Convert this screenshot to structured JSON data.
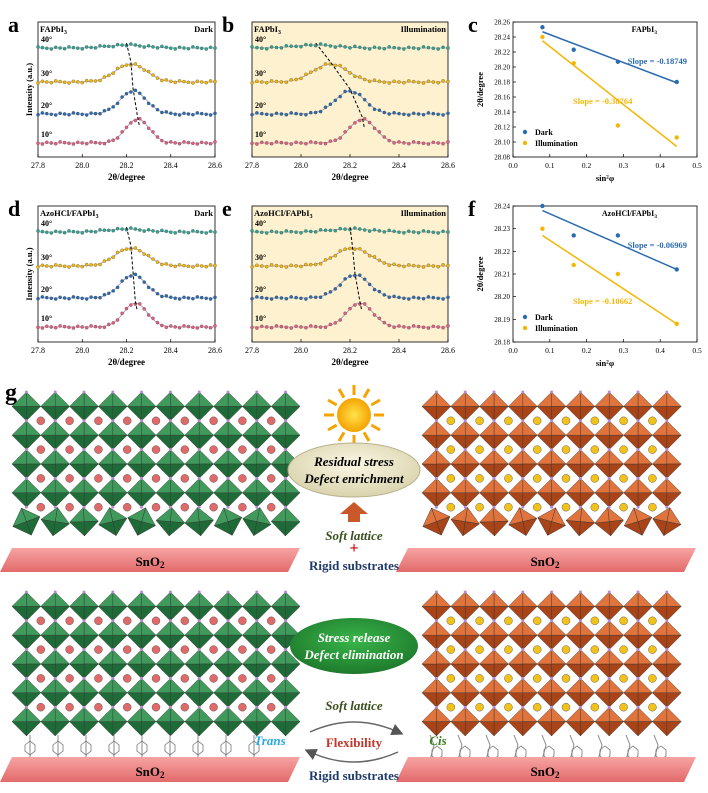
{
  "panels": {
    "a": {
      "letter": "a",
      "material": "FAPbI",
      "sub": "3",
      "condition": "Dark"
    },
    "b": {
      "letter": "b",
      "material": "FAPbI",
      "sub": "3",
      "condition": "Illumination"
    },
    "c": {
      "letter": "c",
      "material": "FAPbI",
      "sub": "3"
    },
    "d": {
      "letter": "d",
      "material": "AzoHCl/FAPbI",
      "sub": "3",
      "condition": "Dark"
    },
    "e": {
      "letter": "e",
      "material": "AzoHCl/FAPbI",
      "sub": "3",
      "condition": "Illumination"
    },
    "f": {
      "letter": "f",
      "material": "AzoHCl/FAPbI",
      "sub": "3"
    },
    "g": {
      "letter": "g"
    }
  },
  "xrd_axes": {
    "xlabel": "2θ/degree",
    "ylabel": "Intensity (a.u.)",
    "ticks": [
      "27.8",
      "28.0",
      "28.2",
      "28.4",
      "28.6"
    ],
    "angle_labels": [
      "40°",
      "30°",
      "20°",
      "10°"
    ]
  },
  "chart_data": [
    {
      "type": "line",
      "panel": "a",
      "xlim": [
        27.8,
        28.6
      ],
      "series": [
        {
          "label": "40°",
          "peak": 28.2,
          "color": "#2ea58f"
        },
        {
          "label": "30°",
          "peak": 28.22,
          "color": "#f2b705"
        },
        {
          "label": "20°",
          "peak": 28.23,
          "color": "#2b6cb0"
        },
        {
          "label": "10°",
          "peak": 28.25,
          "color": "#e0607e"
        }
      ]
    },
    {
      "type": "line",
      "panel": "b",
      "xlim": [
        27.8,
        28.6
      ],
      "series": [
        {
          "label": "40°",
          "peak": 28.06,
          "color": "#2ea58f"
        },
        {
          "label": "30°",
          "peak": 28.12,
          "color": "#f2b705"
        },
        {
          "label": "20°",
          "peak": 28.2,
          "color": "#2b6cb0"
        },
        {
          "label": "10°",
          "peak": 28.25,
          "color": "#e0607e"
        }
      ]
    },
    {
      "type": "scatter",
      "panel": "c",
      "xlabel": "sin²φ",
      "ylabel": "2θ/degree",
      "xlim": [
        0.0,
        0.5
      ],
      "ylim": [
        28.08,
        28.26
      ],
      "xticks": [
        "0.0",
        "0.1",
        "0.2",
        "0.3",
        "0.4",
        "0.5"
      ],
      "yticks": [
        "28.08",
        "28.10",
        "28.12",
        "28.14",
        "28.16",
        "28.18",
        "28.20",
        "28.22",
        "28.24",
        "28.26"
      ],
      "legend": [
        "Dark",
        "Illumination"
      ],
      "series": [
        {
          "name": "Dark",
          "color": "#2b6cb0",
          "x": [
            0.08,
            0.165,
            0.285,
            0.445
          ],
          "y": [
            28.253,
            28.223,
            28.207,
            28.18
          ],
          "fit": [
            [
              0.08,
              28.247
            ],
            [
              0.445,
              28.179
            ]
          ]
        },
        {
          "name": "Illumination",
          "color": "#f2b705",
          "x": [
            0.08,
            0.165,
            0.285,
            0.445
          ],
          "y": [
            28.24,
            28.205,
            28.122,
            28.106
          ],
          "fit": [
            [
              0.08,
              28.235
            ],
            [
              0.445,
              28.094
            ]
          ]
        }
      ],
      "annotations": [
        "Slope = -0.18749",
        "Slope = -0.38764"
      ]
    },
    {
      "type": "line",
      "panel": "d",
      "xlim": [
        27.8,
        28.6
      ],
      "series": [
        {
          "label": "40°",
          "peak": 28.2,
          "color": "#2ea58f"
        },
        {
          "label": "30°",
          "peak": 28.22,
          "color": "#f2b705"
        },
        {
          "label": "20°",
          "peak": 28.23,
          "color": "#2b6cb0"
        },
        {
          "label": "10°",
          "peak": 28.24,
          "color": "#e0607e"
        }
      ]
    },
    {
      "type": "line",
      "panel": "e",
      "xlim": [
        27.8,
        28.6
      ],
      "series": [
        {
          "label": "40°",
          "peak": 28.2,
          "color": "#2ea58f"
        },
        {
          "label": "30°",
          "peak": 28.21,
          "color": "#f2b705"
        },
        {
          "label": "20°",
          "peak": 28.22,
          "color": "#2b6cb0"
        },
        {
          "label": "10°",
          "peak": 28.24,
          "color": "#e0607e"
        }
      ]
    },
    {
      "type": "scatter",
      "panel": "f",
      "xlabel": "sin²φ",
      "ylabel": "2θ/degree",
      "xlim": [
        0.0,
        0.5
      ],
      "ylim": [
        28.18,
        28.24
      ],
      "xticks": [
        "0.0",
        "0.1",
        "0.2",
        "0.3",
        "0.4",
        "0.5"
      ],
      "yticks": [
        "28.18",
        "28.19",
        "28.20",
        "28.21",
        "28.22",
        "28.23",
        "28.24"
      ],
      "legend": [
        "Dark",
        "Illumination"
      ],
      "series": [
        {
          "name": "Dark",
          "color": "#2b6cb0",
          "x": [
            0.08,
            0.165,
            0.285,
            0.445
          ],
          "y": [
            28.24,
            28.227,
            28.227,
            28.212
          ],
          "fit": [
            [
              0.08,
              28.238
            ],
            [
              0.445,
              28.212
            ]
          ]
        },
        {
          "name": "Illumination",
          "color": "#f2b705",
          "x": [
            0.08,
            0.165,
            0.285,
            0.445
          ],
          "y": [
            28.23,
            28.214,
            28.21,
            28.188
          ],
          "fit": [
            [
              0.08,
              28.227
            ],
            [
              0.445,
              28.188
            ]
          ]
        }
      ],
      "annotations": [
        "Slope = -0.06969",
        "Slope = -0.10662"
      ]
    }
  ],
  "schematic": {
    "top_bubble": [
      "Residual stress",
      "Defect enrichment"
    ],
    "bottom_bubble": [
      "Stress release",
      "Defect elimination"
    ],
    "soft_lattice": "Soft lattice",
    "plus": "+",
    "rigid": "Rigid substrates",
    "sno2": "SnO",
    "sno2_sub": "2",
    "trans": "Trans",
    "cis": "Cis",
    "flexibility": "Flexibility",
    "colors": {
      "green": "#2e7d4a",
      "orange": "#c9582a",
      "substrate": "#f08080",
      "cream": "#fdf1d0"
    }
  }
}
